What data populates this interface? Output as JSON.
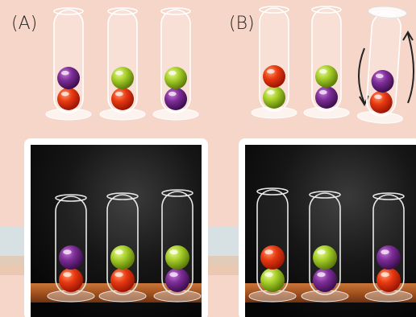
{
  "labels": {
    "a": "(A)",
    "b": "(B)"
  }
}
